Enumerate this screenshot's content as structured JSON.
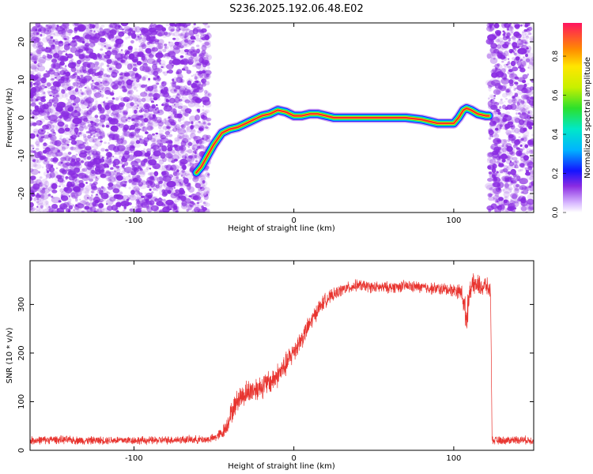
{
  "title": "S236.2025.192.06.48.E02",
  "colors": {
    "snr_line": "#e8342f",
    "speckle": "#8a2be2",
    "ridge_outer": "#1a1aff",
    "ridge_core": "#ff2a2a"
  },
  "chart_data": [
    {
      "type": "heatmap",
      "xlabel": "Height of straight line (km)",
      "ylabel": "Frequency (Hz)",
      "xlim": [
        -165,
        150
      ],
      "ylim": [
        -25,
        25
      ],
      "xticks": [
        -100,
        0,
        100
      ],
      "xtick_labels": [
        "-100",
        "0",
        "100"
      ],
      "yticks": [
        -20,
        -10,
        0,
        10,
        20
      ],
      "ytick_labels": [
        "-20",
        "-10",
        "0",
        "10",
        "20"
      ],
      "noise_regions": [
        [
          -165,
          -53
        ],
        [
          122,
          150
        ]
      ],
      "ridge": {
        "x": [
          -61,
          -58,
          -54,
          -50,
          -45,
          -40,
          -35,
          -30,
          -25,
          -20,
          -15,
          -10,
          -5,
          0,
          5,
          10,
          15,
          20,
          25,
          30,
          40,
          50,
          60,
          70,
          80,
          85,
          90,
          95,
          100,
          103,
          106,
          108,
          111,
          115,
          120,
          122
        ],
        "y": [
          -14.5,
          -13,
          -10,
          -7,
          -4,
          -3,
          -2.5,
          -1.5,
          -0.5,
          0.5,
          1,
          2,
          1.5,
          0.5,
          0.5,
          1,
          1,
          0.5,
          0,
          0,
          0,
          0,
          0,
          0,
          -0.5,
          -1,
          -1.5,
          -1.5,
          -1.5,
          0,
          2,
          2.5,
          2,
          1,
          0.5,
          0.5
        ]
      },
      "colorbar": {
        "label": "Normalized spectral amplitude",
        "ticks": [
          0,
          0.2,
          0.4,
          0.6,
          0.8
        ],
        "tick_labels": [
          "0.0",
          "0.2",
          "0.4",
          "0.6",
          "0.8"
        ],
        "range": [
          0,
          0.97
        ]
      },
      "grid": false
    },
    {
      "type": "line",
      "xlabel": "Height of straight line (km)",
      "ylabel": "SNR (10 * v/v)",
      "xlim": [
        -165,
        150
      ],
      "ylim": [
        0,
        390
      ],
      "xticks": [
        -100,
        0,
        100
      ],
      "xtick_labels": [
        "-100",
        "0",
        "100"
      ],
      "yticks": [
        0,
        100,
        200,
        300
      ],
      "ytick_labels": [
        "0",
        "100",
        "200",
        "300"
      ],
      "series": [
        {
          "x": [
            -165,
            -150,
            -130,
            -110,
            -90,
            -70,
            -55,
            -50,
            -45,
            -42,
            -40,
            -35,
            -30,
            -25,
            -20,
            -15,
            -10,
            -5,
            0,
            5,
            10,
            15,
            20,
            25,
            30,
            40,
            50,
            60,
            70,
            80,
            90,
            100,
            105,
            108,
            110,
            112,
            115,
            118,
            120,
            122,
            123,
            124,
            125,
            130,
            140,
            150
          ],
          "y": [
            20,
            22,
            20,
            21,
            20,
            22,
            22,
            25,
            35,
            50,
            70,
            105,
            118,
            125,
            132,
            140,
            155,
            175,
            205,
            230,
            260,
            290,
            310,
            320,
            330,
            340,
            335,
            335,
            338,
            335,
            332,
            330,
            325,
            270,
            330,
            340,
            340,
            335,
            340,
            330,
            330,
            20,
            20,
            20,
            22,
            20
          ],
          "noise": [
            10,
            10,
            10,
            10,
            10,
            10,
            10,
            10,
            15,
            20,
            25,
            28,
            30,
            30,
            30,
            30,
            30,
            30,
            28,
            25,
            22,
            20,
            18,
            15,
            15,
            14,
            14,
            14,
            14,
            14,
            15,
            16,
            20,
            40,
            22,
            25,
            25,
            25,
            22,
            20,
            18,
            10,
            10,
            10,
            10,
            10
          ]
        }
      ],
      "grid": false
    }
  ]
}
